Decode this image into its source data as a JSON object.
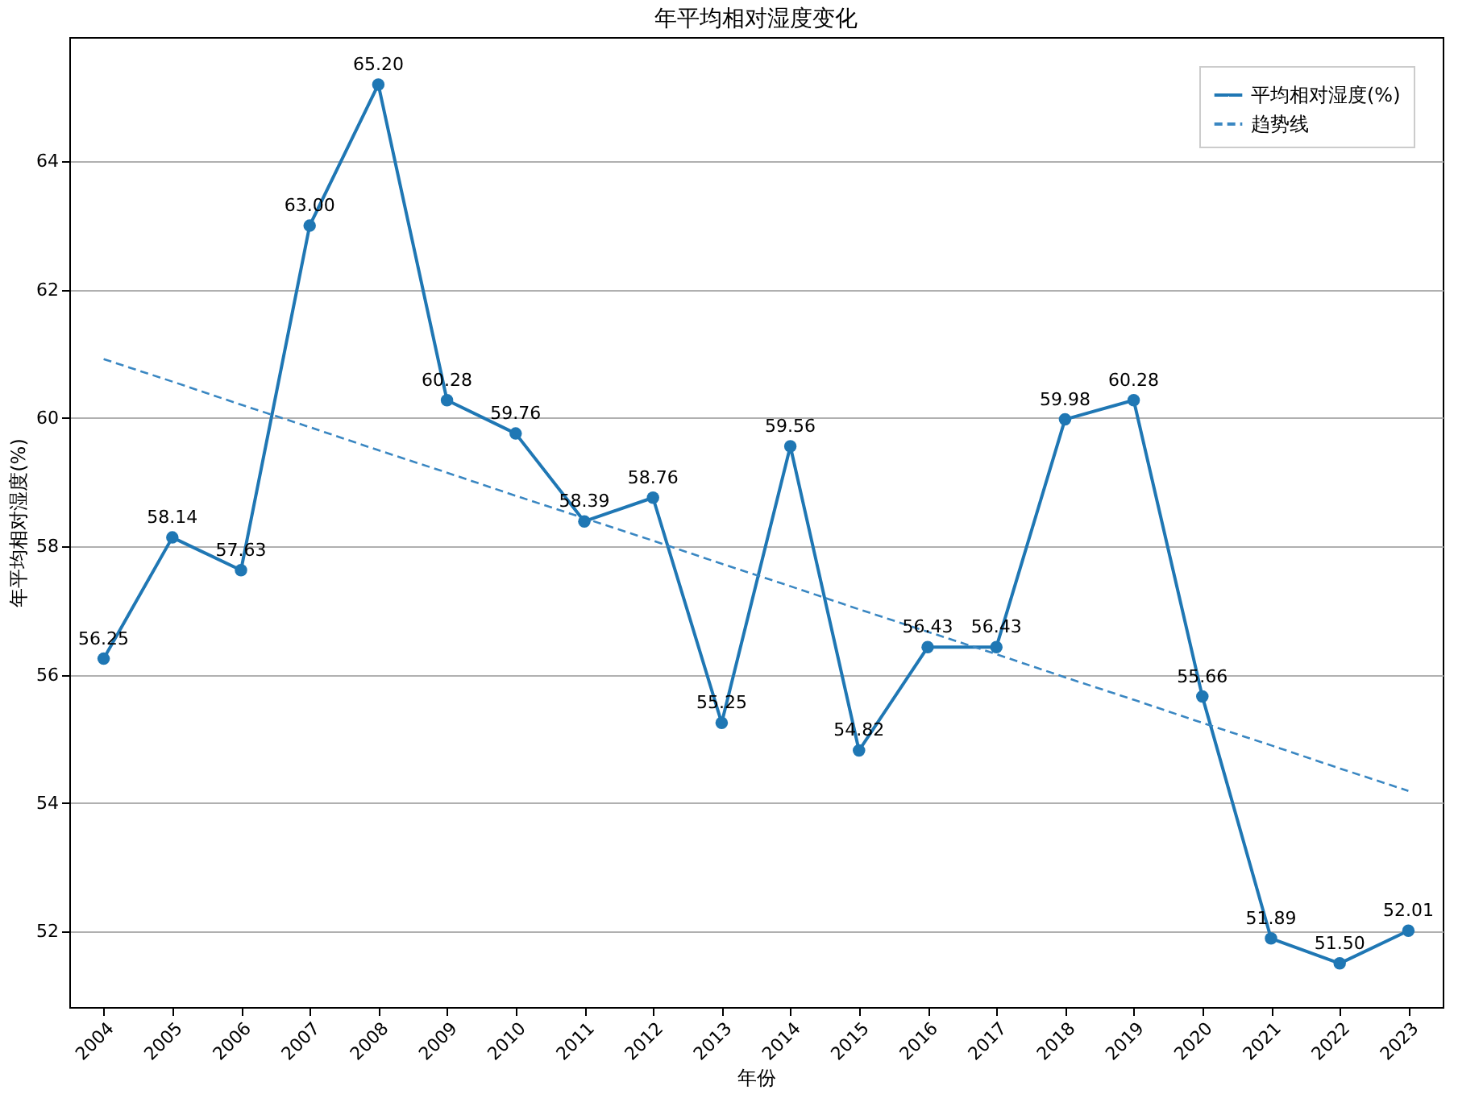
{
  "chart_data": {
    "type": "line",
    "title": "年平均相对湿度变化",
    "xlabel": "年份",
    "ylabel": "年平均相对湿度(%)",
    "categories": [
      "2004",
      "2005",
      "2006",
      "2007",
      "2008",
      "2009",
      "2010",
      "2011",
      "2012",
      "2013",
      "2014",
      "2015",
      "2016",
      "2017",
      "2018",
      "2019",
      "2020",
      "2021",
      "2022",
      "2023"
    ],
    "series": [
      {
        "name": "平均相对湿度(%)",
        "color": "#1f77b4",
        "marker": "circle",
        "line_style": "solid",
        "values": [
          56.25,
          58.14,
          57.63,
          63.0,
          65.2,
          60.28,
          59.76,
          58.39,
          58.76,
          55.25,
          59.56,
          54.82,
          56.43,
          56.43,
          59.98,
          60.28,
          55.66,
          51.89,
          51.5,
          52.01
        ],
        "value_labels": [
          "56.25",
          "58.14",
          "57.63",
          "63.00",
          "65.20",
          "60.28",
          "59.76",
          "58.39",
          "58.76",
          "55.25",
          "59.56",
          "54.82",
          "56.43",
          "56.43",
          "59.98",
          "60.28",
          "55.66",
          "51.89",
          "51.50",
          "52.01"
        ]
      },
      {
        "name": "趋势线",
        "type": "line",
        "color": "#3a87c2",
        "marker": "none",
        "line_style": "dashed",
        "values": [
          60.92,
          60.57,
          60.21,
          59.86,
          59.5,
          59.15,
          58.79,
          58.44,
          58.09,
          57.73,
          57.38,
          57.02,
          56.67,
          56.32,
          55.96,
          55.61,
          55.25,
          54.9,
          54.54,
          54.19
        ]
      }
    ],
    "ylim": [
      50.82,
      65.94
    ],
    "yticks": [
      52,
      54,
      56,
      58,
      60,
      62,
      64
    ],
    "grid": "y",
    "legend": "top right"
  }
}
